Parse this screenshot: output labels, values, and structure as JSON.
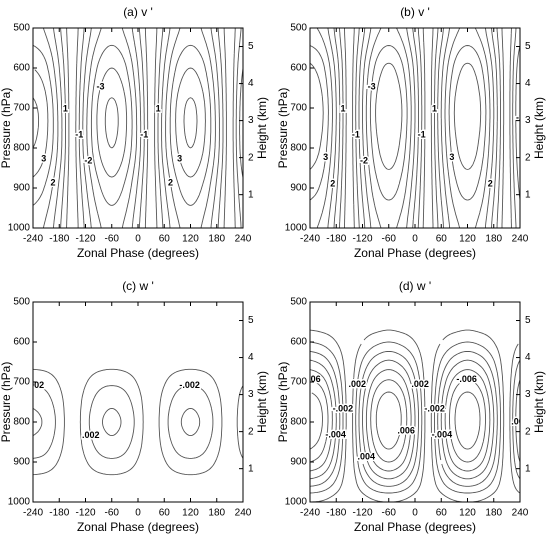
{
  "chart_data": [
    {
      "type": "contour",
      "title": "(a) v '",
      "xlabel": "Zonal Phase (degrees)",
      "ylabel": "Pressure (hPa)",
      "y2label": "Height (km)",
      "xlim": [
        -240,
        240
      ],
      "xticks": [
        -240,
        -180,
        -120,
        -60,
        0,
        60,
        120,
        180,
        240
      ],
      "ylim": [
        1000,
        500
      ],
      "yticks": [
        500,
        600,
        700,
        800,
        900,
        1000
      ],
      "y2lim": [
        0.1,
        5.5
      ],
      "y2ticks": [
        1,
        2,
        3,
        4,
        5
      ],
      "color": "#555555",
      "negative_dashed": true,
      "levels": [
        -3.5,
        -3,
        -2.5,
        -2,
        -1.5,
        -1,
        -0.5,
        0.5,
        1,
        1.5,
        2,
        2.5,
        3,
        3.5
      ],
      "labeled_levels": [
        -3,
        -2,
        -1,
        1,
        2,
        3
      ],
      "x": [
        -240,
        -210,
        -180,
        -150,
        -120,
        -90,
        -60,
        -30,
        0,
        30,
        60,
        90,
        120,
        150,
        180,
        210,
        240
      ],
      "y": [
        500,
        600,
        700,
        800,
        900,
        1000
      ],
      "z": [
        [
          2.2,
          1.9,
          1.1,
          0,
          -1.1,
          -1.9,
          -2.2,
          -1.9,
          -1.1,
          0,
          1.1,
          1.9,
          2.2,
          1.9,
          1.1,
          0,
          -1.1
        ],
        [
          3,
          2.6,
          1.5,
          0,
          -1.5,
          -2.6,
          -3,
          -2.6,
          -1.5,
          0,
          1.5,
          2.6,
          3,
          2.6,
          1.5,
          0,
          -1.5
        ],
        [
          3.6,
          3.1,
          1.8,
          0,
          -1.8,
          -3.1,
          -3.6,
          -3.1,
          -1.8,
          0,
          1.8,
          3.1,
          3.6,
          3.1,
          1.8,
          0,
          -1.8
        ],
        [
          3.5,
          3,
          1.8,
          0,
          -1.8,
          -3,
          -3.5,
          -3,
          -1.8,
          0,
          1.8,
          3,
          3.5,
          3,
          1.8,
          0,
          -1.8
        ],
        [
          2.8,
          2.4,
          1.4,
          0,
          -1.4,
          -2.4,
          -2.8,
          -2.4,
          -1.4,
          0,
          1.4,
          2.4,
          2.8,
          2.4,
          1.4,
          0,
          -1.4
        ],
        [
          2.2,
          1.9,
          1.1,
          0,
          -1.1,
          -1.9,
          -2.2,
          -1.9,
          -1.1,
          0,
          1.1,
          1.9,
          2.2,
          1.9,
          1.1,
          0,
          -1.1
        ]
      ]
    },
    {
      "type": "contour",
      "title": "(b) v '",
      "xlabel": "Zonal Phase (degrees)",
      "ylabel": "Pressure (hPa)",
      "y2label": "Height (km)",
      "xlim": [
        -240,
        240
      ],
      "xticks": [
        -240,
        -180,
        -120,
        -60,
        0,
        60,
        120,
        180,
        240
      ],
      "ylim": [
        1000,
        500
      ],
      "yticks": [
        500,
        600,
        700,
        800,
        900,
        1000
      ],
      "y2lim": [
        0.1,
        5.5
      ],
      "y2ticks": [
        1,
        2,
        3,
        4,
        5
      ],
      "color": "#555555",
      "negative_dashed": true,
      "levels": [
        -3.5,
        -3,
        -2.5,
        -2,
        -1.5,
        -1,
        -0.5,
        0.5,
        1,
        1.5,
        2,
        2.5,
        3,
        3.5
      ],
      "labeled_levels": [
        -3,
        -2,
        -1,
        1,
        2,
        3
      ],
      "x": [
        -240,
        -210,
        -180,
        -150,
        -120,
        -90,
        -60,
        -30,
        0,
        30,
        60,
        90,
        120,
        150,
        180,
        210,
        240
      ],
      "y": [
        500,
        600,
        700,
        800,
        900,
        1000
      ],
      "z": [
        [
          2.6,
          2.3,
          1.3,
          0,
          -1.3,
          -2.3,
          -2.6,
          -2.3,
          -1.3,
          0,
          1.3,
          2.3,
          2.6,
          2.3,
          1.3,
          0,
          -1.3
        ],
        [
          3.6,
          3.1,
          1.8,
          0,
          -1.8,
          -3.1,
          -3.6,
          -3.1,
          -1.8,
          0,
          1.8,
          3.1,
          3.6,
          3.1,
          1.8,
          0,
          -1.8
        ],
        [
          4,
          3.5,
          2,
          0,
          -2,
          -3.5,
          -4,
          -3.5,
          -2,
          0,
          2,
          3.5,
          4,
          3.5,
          2,
          0,
          -2
        ],
        [
          3.8,
          3.3,
          1.9,
          0,
          -1.9,
          -3.3,
          -3.8,
          -3.3,
          -1.9,
          0,
          1.9,
          3.3,
          3.8,
          3.3,
          1.9,
          0,
          -1.9
        ],
        [
          3.2,
          2.8,
          1.6,
          0,
          -1.6,
          -2.8,
          -3.2,
          -2.8,
          -1.6,
          0,
          1.6,
          2.8,
          3.2,
          2.8,
          1.6,
          0,
          -1.6
        ],
        [
          2.6,
          2.3,
          1.3,
          0,
          -1.3,
          -2.3,
          -2.6,
          -2.3,
          -1.3,
          0,
          1.3,
          2.3,
          2.6,
          2.3,
          1.3,
          0,
          -1.3
        ]
      ]
    },
    {
      "type": "contour",
      "title": "(c) w '",
      "xlabel": "Zonal Phase (degrees)",
      "ylabel": "Pressure (hPa)",
      "y2label": "Height (km)",
      "xlim": [
        -240,
        240
      ],
      "xticks": [
        -240,
        -180,
        -120,
        -60,
        0,
        60,
        120,
        180,
        240
      ],
      "ylim": [
        1000,
        500
      ],
      "yticks": [
        500,
        600,
        700,
        800,
        900,
        1000
      ],
      "y2lim": [
        0.1,
        5.5
      ],
      "y2ticks": [
        1,
        2,
        3,
        4,
        5
      ],
      "color": "#555555",
      "negative_dashed": true,
      "levels": [
        -0.003,
        -0.002,
        -0.001,
        0.001,
        0.002,
        0.003
      ],
      "labeled_levels": [
        {
          "value": -0.002,
          "label": "-.002"
        },
        {
          "value": 0.002,
          "label": ".002"
        }
      ],
      "x": [
        -240,
        -210,
        -180,
        -150,
        -120,
        -90,
        -60,
        -30,
        0,
        30,
        60,
        90,
        120,
        150,
        180,
        210,
        240
      ],
      "y": [
        500,
        550,
        600,
        650,
        700,
        750,
        800,
        850,
        900,
        950,
        1000
      ],
      "z": [
        [
          0,
          0,
          0,
          0,
          0,
          0,
          0,
          0,
          0,
          0,
          0,
          0,
          0,
          0,
          0,
          0,
          0
        ],
        [
          0,
          0,
          0,
          0,
          0,
          0,
          0,
          0,
          0,
          0,
          0,
          0,
          0,
          0,
          0,
          0,
          0
        ],
        [
          0,
          0,
          0,
          0,
          0,
          0,
          0,
          0,
          0,
          0,
          0,
          0,
          0,
          0,
          0,
          0,
          0
        ],
        [
          -0.0006,
          -0.0005,
          -0.0003,
          0,
          0.0003,
          0.0005,
          0.0006,
          0.0005,
          0.0003,
          0,
          -0.0003,
          -0.0005,
          -0.0006,
          -0.0005,
          -0.0003,
          0,
          0.0003
        ],
        [
          -0.0018,
          -0.0016,
          -0.0009,
          0,
          0.0009,
          0.0016,
          0.0018,
          0.0016,
          0.0009,
          0,
          -0.0009,
          -0.0016,
          -0.0018,
          -0.0016,
          -0.0009,
          0,
          0.0009
        ],
        [
          -0.0028,
          -0.0024,
          -0.0014,
          0,
          0.0014,
          0.0024,
          0.0028,
          0.0024,
          0.0014,
          0,
          -0.0014,
          -0.0024,
          -0.0028,
          -0.0024,
          -0.0014,
          0,
          0.0014
        ],
        [
          -0.0032,
          -0.0028,
          -0.0016,
          0,
          0.0016,
          0.0028,
          0.0032,
          0.0028,
          0.0016,
          0,
          -0.0016,
          -0.0028,
          -0.0032,
          -0.0028,
          -0.0016,
          0,
          0.0016
        ],
        [
          -0.0028,
          -0.0024,
          -0.0014,
          0,
          0.0014,
          0.0024,
          0.0028,
          0.0024,
          0.0014,
          0,
          -0.0014,
          -0.0024,
          -0.0028,
          -0.0024,
          -0.0014,
          0,
          0.0014
        ],
        [
          -0.0018,
          -0.0016,
          -0.0009,
          0,
          0.0009,
          0.0016,
          0.0018,
          0.0016,
          0.0009,
          0,
          -0.0009,
          -0.0016,
          -0.0018,
          -0.0016,
          -0.0009,
          0,
          0.0009
        ],
        [
          -0.0006,
          -0.0005,
          -0.0003,
          0,
          0.0003,
          0.0005,
          0.0006,
          0.0005,
          0.0003,
          0,
          -0.0003,
          -0.0005,
          -0.0006,
          -0.0005,
          -0.0003,
          0,
          0.0003
        ],
        [
          0,
          0,
          0,
          0,
          0,
          0,
          0,
          0,
          0,
          0,
          0,
          0,
          0,
          0,
          0,
          0,
          0
        ]
      ]
    },
    {
      "type": "contour",
      "title": "(d) w '",
      "xlabel": "Zonal Phase (degrees)",
      "ylabel": "Pressure (hPa)",
      "y2label": "Height (km)",
      "xlim": [
        -240,
        240
      ],
      "xticks": [
        -240,
        -180,
        -120,
        -60,
        0,
        60,
        120,
        180,
        240
      ],
      "ylim": [
        1000,
        500
      ],
      "yticks": [
        500,
        600,
        700,
        800,
        900,
        1000
      ],
      "y2lim": [
        0.1,
        5.5
      ],
      "y2ticks": [
        1,
        2,
        3,
        4,
        5
      ],
      "color": "#555555",
      "negative_dashed": true,
      "levels": [
        -0.007,
        -0.006,
        -0.005,
        -0.004,
        -0.003,
        -0.002,
        -0.001,
        0.001,
        0.002,
        0.003,
        0.004,
        0.005,
        0.006,
        0.007
      ],
      "labeled_levels": [
        {
          "value": -0.006,
          "label": "-.006"
        },
        {
          "value": -0.004,
          "label": "-.004"
        },
        {
          "value": -0.002,
          "label": "-.002"
        },
        {
          "value": 0.002,
          "label": ".002"
        },
        {
          "value": 0.004,
          "label": ".004"
        },
        {
          "value": 0.006,
          "label": ".006"
        }
      ],
      "x": [
        -240,
        -210,
        -180,
        -150,
        -120,
        -90,
        -60,
        -30,
        0,
        30,
        60,
        90,
        120,
        150,
        180,
        210,
        240
      ],
      "y": [
        500,
        550,
        600,
        650,
        700,
        750,
        800,
        850,
        900,
        950,
        1000
      ],
      "z": [
        [
          0,
          0,
          0,
          0,
          0,
          0,
          0,
          0,
          0,
          0,
          0,
          0,
          0,
          0,
          0,
          0,
          0
        ],
        [
          -0.0005,
          -0.0004,
          -0.0003,
          0,
          0.0003,
          0.0004,
          0.0005,
          0.0004,
          0.0003,
          0,
          -0.0003,
          -0.0004,
          -0.0005,
          -0.0004,
          -0.0003,
          0,
          0.0003
        ],
        [
          -0.002,
          -0.0017,
          -0.001,
          0,
          0.001,
          0.0017,
          0.002,
          0.0017,
          0.001,
          0,
          -0.001,
          -0.0017,
          -0.002,
          -0.0017,
          -0.001,
          0,
          0.001
        ],
        [
          -0.0042,
          -0.0036,
          -0.0021,
          0,
          0.0021,
          0.0036,
          0.0042,
          0.0036,
          0.0021,
          0,
          -0.0021,
          -0.0036,
          -0.0042,
          -0.0036,
          -0.0021,
          0,
          0.0021
        ],
        [
          -0.0062,
          -0.0054,
          -0.0031,
          0,
          0.0031,
          0.0054,
          0.0062,
          0.0054,
          0.0031,
          0,
          -0.0031,
          -0.0054,
          -0.0062,
          -0.0054,
          -0.0031,
          0,
          0.0031
        ],
        [
          -0.0076,
          -0.0066,
          -0.0038,
          0,
          0.0038,
          0.0066,
          0.0076,
          0.0066,
          0.0038,
          0,
          -0.0038,
          -0.0066,
          -0.0076,
          -0.0066,
          -0.0038,
          0,
          0.0038
        ],
        [
          -0.008,
          -0.0069,
          -0.004,
          0,
          0.004,
          0.0069,
          0.008,
          0.0069,
          0.004,
          0,
          -0.004,
          -0.0069,
          -0.008,
          -0.0069,
          -0.004,
          0,
          0.004
        ],
        [
          -0.0074,
          -0.0064,
          -0.0037,
          0,
          0.0037,
          0.0064,
          0.0074,
          0.0064,
          0.0037,
          0,
          -0.0037,
          -0.0064,
          -0.0074,
          -0.0064,
          -0.0037,
          0,
          0.0037
        ],
        [
          -0.006,
          -0.0052,
          -0.003,
          0,
          0.003,
          0.0052,
          0.006,
          0.0052,
          0.003,
          0,
          -0.003,
          -0.0052,
          -0.006,
          -0.0052,
          -0.003,
          0,
          0.003
        ],
        [
          -0.0036,
          -0.0031,
          -0.0018,
          0,
          0.0018,
          0.0031,
          0.0036,
          0.0031,
          0.0018,
          0,
          -0.0018,
          -0.0031,
          -0.0036,
          -0.0031,
          -0.0018,
          0,
          0.0018
        ],
        [
          -0.001,
          -0.0009,
          -0.0005,
          0,
          0.0005,
          0.0009,
          0.001,
          0.0009,
          0.0005,
          0,
          -0.0005,
          -0.0009,
          -0.001,
          -0.0009,
          -0.0005,
          0,
          0.0005
        ]
      ]
    }
  ]
}
